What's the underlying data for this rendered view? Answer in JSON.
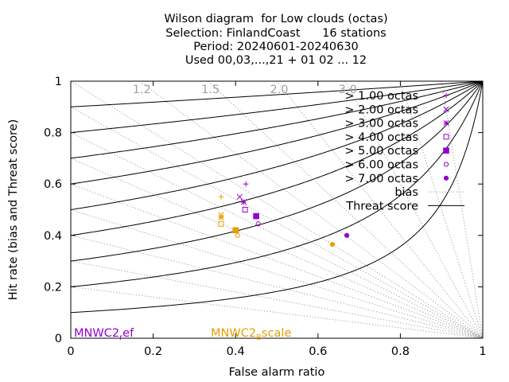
{
  "title_lines": [
    "Wilson diagram  for Low clouds (octas)",
    "Selection: FinlandCoast      16 stations",
    "Period: 20240601-20240630",
    "Used 00,03,...,21 + 01 02 ... 12"
  ],
  "chart_data": {
    "type": "scatter",
    "xlabel": "False alarm ratio",
    "ylabel": "Hit rate (bias and Threat score)",
    "xlim": [
      0,
      1
    ],
    "ylim": [
      0,
      1
    ],
    "xticks": [
      "0",
      "0.2",
      "0.4",
      "0.6",
      "0.8",
      "1"
    ],
    "yticks": [
      "0",
      "0.2",
      "0.4",
      "0.6",
      "0.8",
      "1"
    ],
    "bias_values": [
      0.2,
      0.3,
      0.4,
      0.5,
      0.6,
      0.7,
      0.8,
      0.9,
      1.0,
      1.2,
      1.5,
      2.0,
      3.0,
      5.0,
      10.0
    ],
    "bias_labels": [
      {
        "text": "1.2",
        "value": 1.2
      },
      {
        "text": "1.5",
        "value": 1.5
      },
      {
        "text": "2.0",
        "value": 2.0
      },
      {
        "text": "3.0",
        "value": 3.0
      }
    ],
    "threat_score_values": [
      0.1,
      0.2,
      0.3,
      0.4,
      0.5,
      0.6,
      0.7,
      0.8,
      0.9
    ],
    "legend": {
      "placement": "top-right",
      "entries": [
        {
          "label": "> 1.00 octas",
          "marker": "plus"
        },
        {
          "label": "> 2.00 octas",
          "marker": "cross"
        },
        {
          "label": "> 3.00 octas",
          "marker": "star"
        },
        {
          "label": "> 4.00 octas",
          "marker": "open-square"
        },
        {
          "label": "> 5.00 octas",
          "marker": "filled-square"
        },
        {
          "label": "> 6.00 octas",
          "marker": "open-circle"
        },
        {
          "label": "> 7.00 octas",
          "marker": "filled-circle"
        },
        {
          "label": "bias",
          "marker": "dotted-line"
        },
        {
          "label": "Threat score",
          "marker": "solid-line"
        }
      ]
    },
    "series": [
      {
        "name": "MNWC2_ref",
        "color": "#9400d3",
        "points": [
          {
            "marker": "plus",
            "x": 0.425,
            "y": 0.6
          },
          {
            "marker": "cross",
            "x": 0.41,
            "y": 0.55
          },
          {
            "marker": "star",
            "x": 0.42,
            "y": 0.53
          },
          {
            "marker": "open-square",
            "x": 0.423,
            "y": 0.5
          },
          {
            "marker": "filled-square",
            "x": 0.45,
            "y": 0.475
          },
          {
            "marker": "open-circle",
            "x": 0.455,
            "y": 0.445
          },
          {
            "marker": "filled-circle",
            "x": 0.67,
            "y": 0.4
          }
        ]
      },
      {
        "name": "MNWC2_Bscale",
        "color": "#e69f00",
        "points": [
          {
            "marker": "plus",
            "x": 0.365,
            "y": 0.55
          },
          {
            "marker": "cross",
            "x": 0.365,
            "y": 0.48
          },
          {
            "marker": "star",
            "x": 0.365,
            "y": 0.47
          },
          {
            "marker": "open-square",
            "x": 0.365,
            "y": 0.445
          },
          {
            "marker": "filled-square",
            "x": 0.4,
            "y": 0.42
          },
          {
            "marker": "open-circle",
            "x": 0.405,
            "y": 0.4
          },
          {
            "marker": "filled-circle",
            "x": 0.635,
            "y": 0.365
          }
        ]
      }
    ],
    "series_labels": [
      {
        "main": "MNWC2",
        "sub": "r",
        "rest": "ef",
        "color": "#9400d3"
      },
      {
        "main": "MNWC2",
        "sub": "B",
        "rest": "scale",
        "color": "#e69f00"
      }
    ]
  }
}
